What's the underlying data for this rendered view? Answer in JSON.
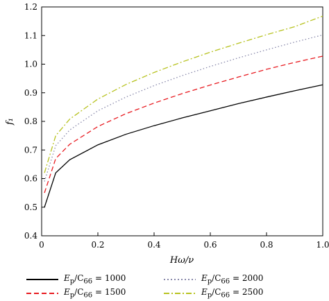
{
  "chart_data": {
    "type": "line",
    "title": "",
    "xlabel": "Hω/ν",
    "ylabel": "f₁",
    "xlim": [
      0,
      1.0
    ],
    "ylim": [
      0.4,
      1.2
    ],
    "xticks": [
      "0",
      "0.2",
      "0.4",
      "0.6",
      "0.8",
      "1.0"
    ],
    "yticks": [
      "0.4",
      "0.5",
      "0.6",
      "0.7",
      "0.8",
      "0.9",
      "1.0",
      "1.1",
      "1.2"
    ],
    "grid": false,
    "legend_position": "bottom",
    "x": [
      0.01,
      0.05,
      0.1,
      0.2,
      0.3,
      0.4,
      0.5,
      0.6,
      0.7,
      0.8,
      0.9,
      1.0
    ],
    "series": [
      {
        "name": "Ep/C66 = 1000",
        "color": "#000000",
        "style": "solid",
        "values": [
          0.5,
          0.62,
          0.666,
          0.718,
          0.755,
          0.785,
          0.812,
          0.837,
          0.862,
          0.885,
          0.907,
          0.928
        ]
      },
      {
        "name": "Ep/C66 = 1500",
        "color": "#e8191f",
        "style": "dashed",
        "values": [
          0.55,
          0.67,
          0.72,
          0.782,
          0.827,
          0.864,
          0.897,
          0.927,
          0.955,
          0.982,
          1.006,
          1.028
        ]
      },
      {
        "name": "Ep/C66 = 2000",
        "color": "#8888aa",
        "style": "dotted",
        "values": [
          0.59,
          0.715,
          0.77,
          0.837,
          0.885,
          0.925,
          0.96,
          0.992,
          1.022,
          1.05,
          1.077,
          1.102
        ]
      },
      {
        "name": "Ep/C66 = 2500",
        "color": "#b7c21f",
        "style": "dashdot",
        "values": [
          0.62,
          0.75,
          0.808,
          0.878,
          0.929,
          0.971,
          1.008,
          1.042,
          1.073,
          1.103,
          1.131,
          1.168
        ]
      }
    ]
  },
  "legend": [
    {
      "prefix": "E",
      "sub1": "p",
      "mid": "/C",
      "sub2": "66",
      "suffix": " = 1000"
    },
    {
      "prefix": "E",
      "sub1": "p",
      "mid": "/C",
      "sub2": "66",
      "suffix": " = 1500"
    },
    {
      "prefix": "E",
      "sub1": "p",
      "mid": "/C",
      "sub2": "66",
      "suffix": " = 2000"
    },
    {
      "prefix": "E",
      "sub1": "p",
      "mid": "/C",
      "sub2": "66",
      "suffix": " = 2500"
    }
  ]
}
